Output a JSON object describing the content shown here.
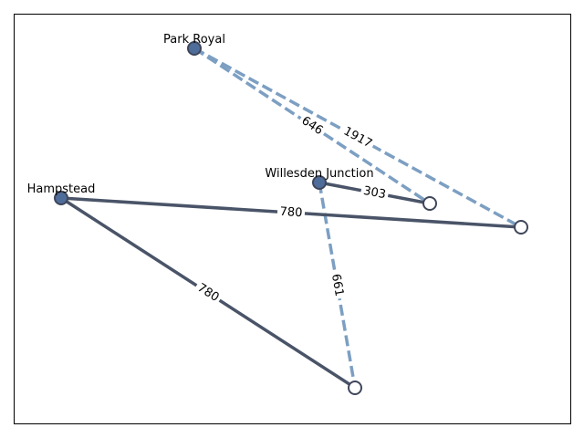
{
  "colors": {
    "solid_edge": "#4a5468",
    "dashed_edge": "#7c9fc2",
    "filled_node": "#4f6d9a",
    "node_stroke": "#3f4659",
    "hollow_node_fill": "#ffffff",
    "frame": "#000000",
    "label_bg": "#ffffff"
  },
  "nodes": [
    {
      "id": "park-royal",
      "label": "Park Royal",
      "filled": true
    },
    {
      "id": "willesden-junction",
      "label": "Willesden Junction",
      "filled": true
    },
    {
      "id": "hampstead",
      "label": "Hampstead",
      "filled": true
    },
    {
      "id": "n4",
      "label": "",
      "filled": false
    },
    {
      "id": "n5",
      "label": "",
      "filled": false
    },
    {
      "id": "n6",
      "label": "",
      "filled": false
    }
  ],
  "edges": [
    {
      "from": "park-royal",
      "to": "n4",
      "weight": "646",
      "style": "dashed"
    },
    {
      "from": "park-royal",
      "to": "n5",
      "weight": "1917",
      "style": "dashed"
    },
    {
      "from": "willesden-junction",
      "to": "n4",
      "weight": "303",
      "style": "solid"
    },
    {
      "from": "willesden-junction",
      "to": "n6",
      "weight": "661",
      "style": "dashed"
    },
    {
      "from": "hampstead",
      "to": "n5",
      "weight": "780",
      "style": "solid"
    },
    {
      "from": "hampstead",
      "to": "n6",
      "weight": "780",
      "style": "solid"
    }
  ]
}
